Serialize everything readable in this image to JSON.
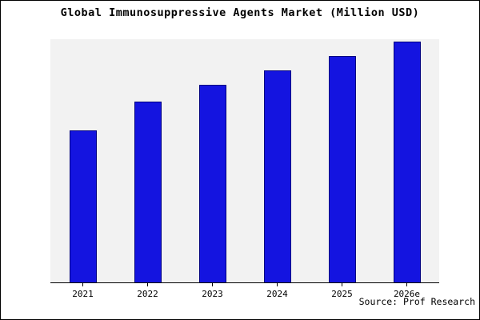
{
  "chart_data": {
    "type": "bar",
    "title": "Global Immunosuppressive Agents Market (Million USD)",
    "categories": [
      "2021",
      "2022",
      "2023",
      "2024",
      "2025",
      "2026e"
    ],
    "values": [
      63,
      75,
      82,
      88,
      94,
      100
    ],
    "ylim": [
      0,
      101
    ],
    "xlabel": "",
    "ylabel": "",
    "grid": false,
    "legend": false,
    "bar_color": "#1414e0",
    "bar_edge_color": "#000080",
    "plot_bg": "#f2f2f2"
  },
  "source": "Source: Prof Research"
}
